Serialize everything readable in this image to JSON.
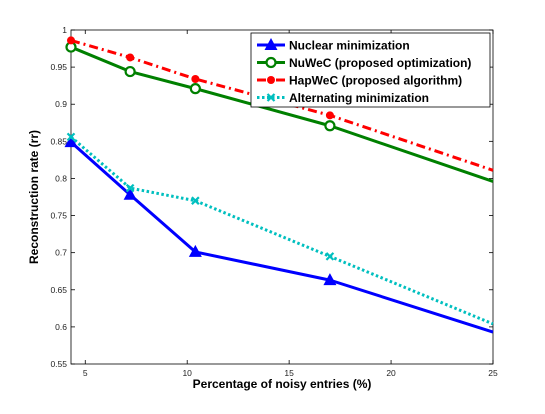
{
  "chart_data": {
    "type": "line",
    "title": "",
    "xlabel": "Percentage of noisy entries (%)",
    "ylabel": "Reconstruction rate (rr)",
    "xlim": [
      4.3,
      25
    ],
    "ylim": [
      0.55,
      1.0
    ],
    "x_ticks": [
      5,
      10,
      15,
      20,
      25
    ],
    "y_ticks": [
      0.55,
      0.6,
      0.65,
      0.7,
      0.75,
      0.8,
      0.85,
      0.9,
      0.95,
      1.0
    ],
    "x_tick_labels": [
      "5",
      "10",
      "15",
      "20",
      "25"
    ],
    "y_tick_labels": [
      "0.55",
      "0.6",
      "0.65",
      "0.7",
      "0.75",
      "0.8",
      "0.85",
      "0.9",
      "0.95",
      "1"
    ],
    "grid": false,
    "legend_position": "top-right",
    "series": [
      {
        "name": "Nuclear minimization",
        "color": "#0000ff",
        "line_style": "solid",
        "marker": "triangle",
        "x": [
          4.3,
          7.2,
          10.4,
          17.0,
          25.0
        ],
        "y": [
          0.849,
          0.778,
          0.701,
          0.663,
          0.593
        ]
      },
      {
        "name": "NuWeC (proposed optimization)",
        "color": "#008000",
        "line_style": "solid",
        "marker": "circle",
        "x": [
          4.3,
          7.2,
          10.4,
          17.0,
          25.0
        ],
        "y": [
          0.977,
          0.944,
          0.921,
          0.871,
          0.796
        ]
      },
      {
        "name": "HapWeC (proposed algorithm)",
        "color": "#ff0000",
        "line_style": "dashdot",
        "marker": "dot",
        "x": [
          4.3,
          7.2,
          10.4,
          17.0,
          25.0
        ],
        "y": [
          0.986,
          0.963,
          0.934,
          0.885,
          0.811
        ]
      },
      {
        "name": "Alternating minimization",
        "color": "#00bfbf",
        "line_style": "dotted",
        "marker": "x",
        "x": [
          4.3,
          7.2,
          10.4,
          17.0,
          25.0
        ],
        "y": [
          0.856,
          0.787,
          0.77,
          0.695,
          0.604
        ]
      }
    ]
  }
}
